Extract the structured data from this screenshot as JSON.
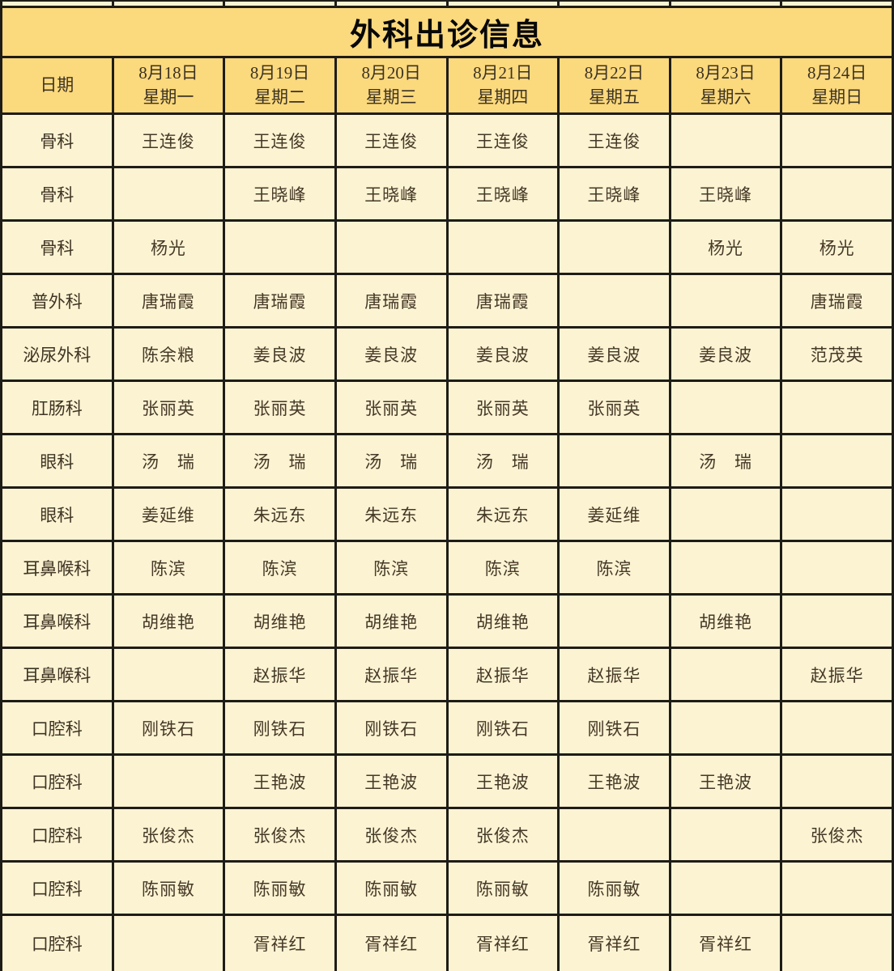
{
  "table": {
    "title": "外科出诊信息",
    "date_header_label": "日期",
    "columns": [
      {
        "date": "8月18日",
        "weekday": "星期一"
      },
      {
        "date": "8月19日",
        "weekday": "星期二"
      },
      {
        "date": "8月20日",
        "weekday": "星期三"
      },
      {
        "date": "8月21日",
        "weekday": "星期四"
      },
      {
        "date": "8月22日",
        "weekday": "星期五"
      },
      {
        "date": "8月23日",
        "weekday": "星期六"
      },
      {
        "date": "8月24日",
        "weekday": "星期日"
      }
    ],
    "rows": [
      {
        "dept": "骨科",
        "cells": [
          "王连俊",
          "王连俊",
          "王连俊",
          "王连俊",
          "王连俊",
          "",
          ""
        ]
      },
      {
        "dept": "骨科",
        "cells": [
          "",
          "王晓峰",
          "王晓峰",
          "王晓峰",
          "王晓峰",
          "王晓峰",
          ""
        ]
      },
      {
        "dept": "骨科",
        "cells": [
          "杨光",
          "",
          "",
          "",
          "",
          "杨光",
          "杨光"
        ]
      },
      {
        "dept": "普外科",
        "cells": [
          "唐瑞霞",
          "唐瑞霞",
          "唐瑞霞",
          "唐瑞霞",
          "",
          "",
          "唐瑞霞"
        ]
      },
      {
        "dept": "泌尿外科",
        "cells": [
          "陈余粮",
          "姜良波",
          "姜良波",
          "姜良波",
          "姜良波",
          "姜良波",
          "范茂英"
        ]
      },
      {
        "dept": "肛肠科",
        "cells": [
          "张丽英",
          "张丽英",
          "张丽英",
          "张丽英",
          "张丽英",
          "",
          ""
        ]
      },
      {
        "dept": "眼科",
        "cells": [
          "汤　瑞",
          "汤　瑞",
          "汤　瑞",
          "汤　瑞",
          "",
          "汤　瑞",
          ""
        ]
      },
      {
        "dept": "眼科",
        "cells": [
          "姜延维",
          "朱远东",
          "朱远东",
          "朱远东",
          "姜延维",
          "",
          ""
        ]
      },
      {
        "dept": "耳鼻喉科",
        "cells": [
          "陈滨",
          "陈滨",
          "陈滨",
          "陈滨",
          "陈滨",
          "",
          ""
        ]
      },
      {
        "dept": "耳鼻喉科",
        "cells": [
          "胡维艳",
          "胡维艳",
          "胡维艳",
          "胡维艳",
          "",
          "胡维艳",
          ""
        ]
      },
      {
        "dept": "耳鼻喉科",
        "cells": [
          "",
          "赵振华",
          "赵振华",
          "赵振华",
          "赵振华",
          "",
          "赵振华"
        ]
      },
      {
        "dept": "口腔科",
        "cells": [
          "刚铁石",
          "刚铁石",
          "刚铁石",
          "刚铁石",
          "刚铁石",
          "",
          ""
        ]
      },
      {
        "dept": "口腔科",
        "cells": [
          "",
          "王艳波",
          "王艳波",
          "王艳波",
          "王艳波",
          "王艳波",
          ""
        ]
      },
      {
        "dept": "口腔科",
        "cells": [
          "张俊杰",
          "张俊杰",
          "张俊杰",
          "张俊杰",
          "",
          "",
          "张俊杰"
        ]
      },
      {
        "dept": "口腔科",
        "cells": [
          "陈丽敏",
          "陈丽敏",
          "陈丽敏",
          "陈丽敏",
          "陈丽敏",
          "",
          ""
        ]
      },
      {
        "dept": "口腔科",
        "cells": [
          "",
          "胥祥红",
          "胥祥红",
          "胥祥红",
          "胥祥红",
          "胥祥红",
          ""
        ]
      }
    ]
  },
  "colors": {
    "header_gold": "#fbd97d",
    "cell_cream": "#fcf3d3",
    "border_dark": "#1e1c17",
    "text_dark_brown": "#463927",
    "title_black": "#080808"
  }
}
